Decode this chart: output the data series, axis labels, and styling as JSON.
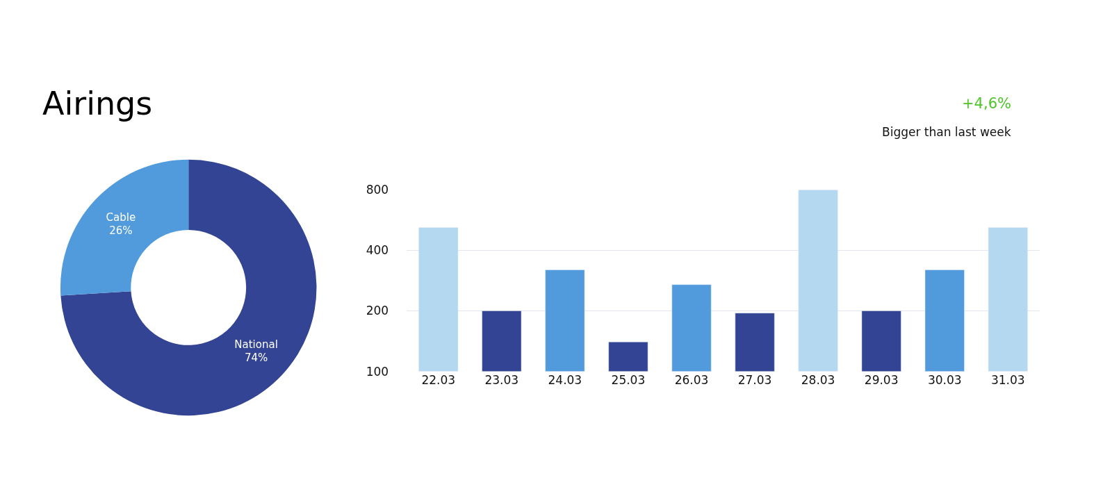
{
  "chart_data": [
    {
      "type": "donut",
      "title": "Airings",
      "categories": [
        "National",
        "Cable"
      ],
      "values": [
        74,
        26
      ],
      "colors": [
        "#324493",
        "#519bdd"
      ],
      "value_labels": [
        "74%",
        "26%"
      ]
    },
    {
      "type": "bar",
      "categories": [
        "22.03",
        "23.03",
        "24.03",
        "25.03",
        "26.03",
        "27.03",
        "28.03",
        "29.03",
        "30.03",
        "31.03"
      ],
      "values": [
        520,
        200,
        320,
        140,
        270,
        195,
        800,
        200,
        320,
        520
      ],
      "colors": [
        "#b3d8f0",
        "#324493",
        "#519bdd",
        "#324493",
        "#519bdd",
        "#324493",
        "#b3d8f0",
        "#324493",
        "#519bdd",
        "#b3d8f0"
      ],
      "log": "y",
      "ylim": [
        100,
        800
      ],
      "yticks": [
        100,
        200,
        400,
        800
      ],
      "grid": "y",
      "annotations": [
        "+4,6%",
        "Bigger than last week"
      ]
    }
  ]
}
